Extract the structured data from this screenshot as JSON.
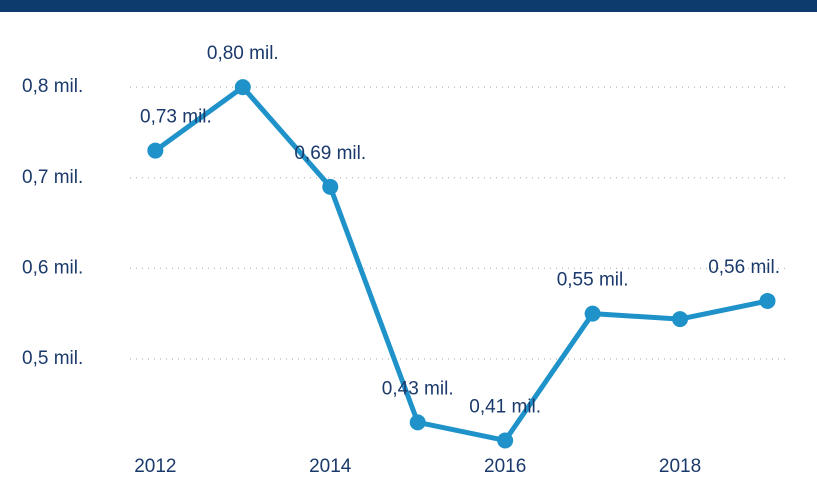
{
  "chart_data": {
    "type": "line",
    "x": [
      2012,
      2013,
      2014,
      2015,
      2016,
      2017,
      2018,
      2019
    ],
    "series": [
      {
        "name": null,
        "color": "#1f93c9",
        "values": [
          0.73,
          0.8,
          0.69,
          0.43,
          0.41,
          0.55,
          0.544,
          0.564
        ],
        "value_labels": [
          "0,73 mil.",
          "0,80 mil.",
          "0,69 mil.",
          "0,43 mil.",
          "0,41 mil.",
          "0,55 mil.",
          null,
          "0,56 mil."
        ]
      }
    ],
    "xlim": [
      2011.71,
      2019.2
    ],
    "xticks": [
      2012,
      2014,
      2016,
      2018
    ],
    "ylim": [
      0.405,
      0.83
    ],
    "yticks": [
      {
        "value": 0.5,
        "label": "0,5 mil."
      },
      {
        "value": 0.6,
        "label": "0,6 mil."
      },
      {
        "value": 0.7,
        "label": "0,7 mil."
      },
      {
        "value": 0.8,
        "label": "0,8 mil."
      }
    ],
    "grid": true
  }
}
